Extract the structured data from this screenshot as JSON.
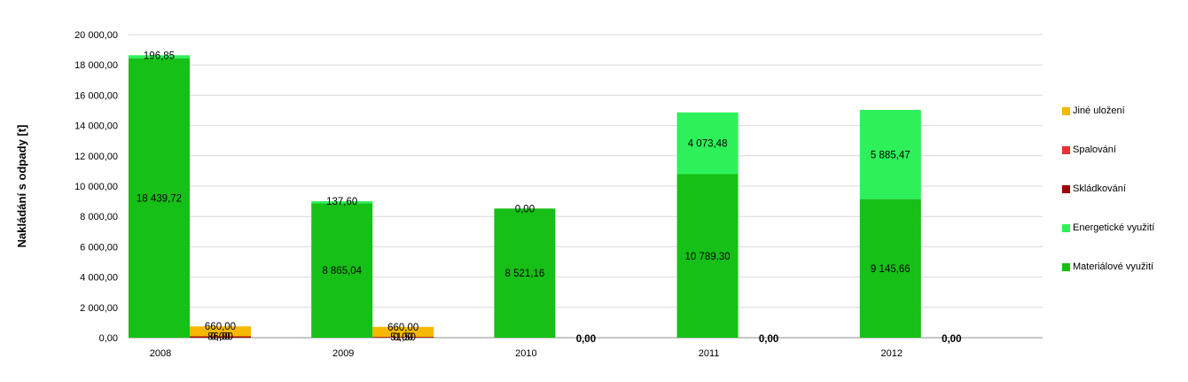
{
  "chart_data": {
    "type": "bar",
    "ylabel": "Nakládání s odpady [t]",
    "ylim": [
      0,
      20000
    ],
    "ytick_labels": [
      "0,00",
      "2 000,00",
      "4 000,00",
      "6 000,00",
      "8 000,00",
      "10 000,00",
      "12 000,00",
      "14 000,00",
      "16 000,00",
      "18 000,00",
      "20 000,00"
    ],
    "categories": [
      "2008",
      "2009",
      "2010",
      "2011",
      "2012"
    ],
    "legend_position": "right",
    "grid": true,
    "stacks": {
      "main": {
        "series": [
          {
            "name": "Materiálové využití",
            "color": "#16c016",
            "values": [
              18439.72,
              8865.04,
              8521.16,
              10789.3,
              9145.66
            ],
            "labels": [
              "18 439,72",
              "8 865,04",
              "8 521,16",
              "10 789,30",
              "9 145,66"
            ]
          },
          {
            "name": "Energetické využití",
            "color": "#2ef05a",
            "values": [
              196.85,
              137.6,
              0.0,
              4073.48,
              5885.47
            ],
            "labels": [
              "196,85",
              "137,60",
              "0,00",
              "4 073,48",
              "5 885,47"
            ]
          }
        ]
      },
      "other": {
        "series": [
          {
            "name": "Skládkování",
            "color": "#a00000",
            "values": [
              86.0,
              51.5,
              0.0,
              0.0,
              0.0
            ],
            "labels": [
              "86,00",
              "51,50",
              "0,00",
              "0,00",
              "0,00"
            ]
          },
          {
            "name": "Spalování",
            "color": "#f03030",
            "values": [
              0.0,
              0.0,
              0.0,
              0.0,
              0.0
            ],
            "labels": [
              "0,00",
              "0,00",
              "0,00",
              "0,00",
              "0,00"
            ]
          },
          {
            "name": "Jiné uložení",
            "color": "#f6b800",
            "values": [
              660.0,
              660.0,
              0.0,
              0.0,
              0.0
            ],
            "labels": [
              "660,00",
              "660,00",
              "0,00",
              "0,00",
              "0,00"
            ]
          }
        ]
      }
    },
    "legend": [
      {
        "name": "Jiné uložení",
        "color": "#f6b800"
      },
      {
        "name": "Spalování",
        "color": "#f03030"
      },
      {
        "name": "Skládkování",
        "color": "#a00000"
      },
      {
        "name": "Energetické využití",
        "color": "#2ef05a"
      },
      {
        "name": "Materiálové využití",
        "color": "#16c016"
      }
    ]
  }
}
